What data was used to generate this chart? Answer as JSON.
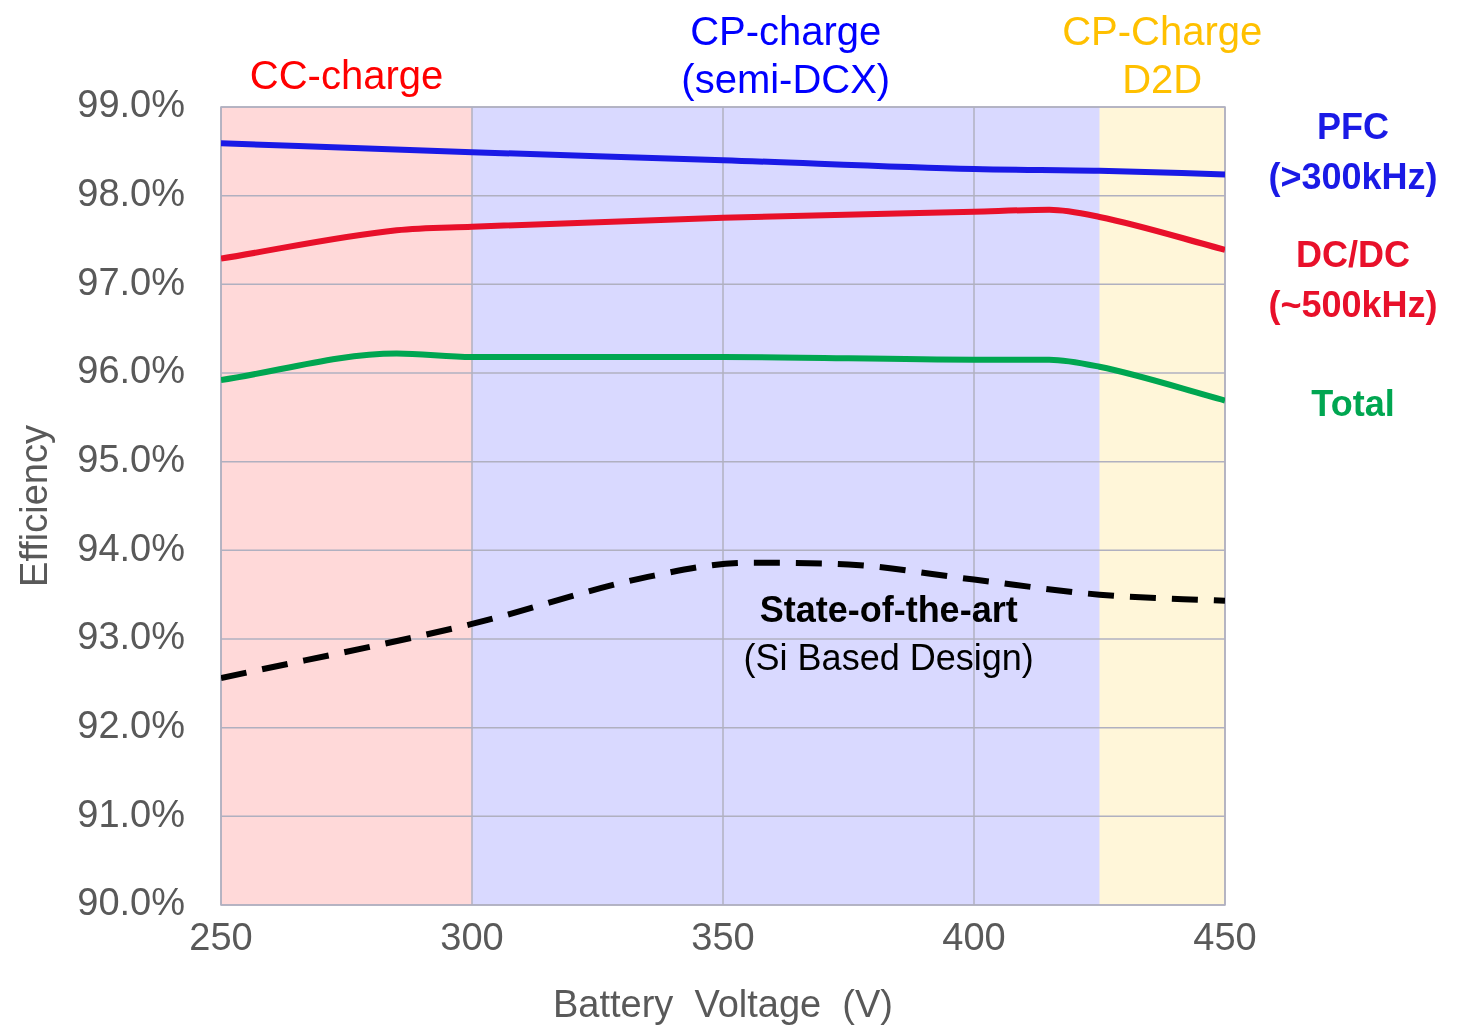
{
  "chart_data": {
    "type": "line",
    "xlabel": "Battery  Voltage  (V)",
    "ylabel": "Efficiency",
    "xlim": [
      250,
      450
    ],
    "xticks": [
      250,
      300,
      350,
      400,
      450
    ],
    "ylim": [
      90,
      99
    ],
    "yticks": [
      {
        "value": 90,
        "label": "90.0%"
      },
      {
        "value": 91,
        "label": "91.0%"
      },
      {
        "value": 92,
        "label": "92.0%"
      },
      {
        "value": 93,
        "label": "93.0%"
      },
      {
        "value": 94,
        "label": "94.0%"
      },
      {
        "value": 95,
        "label": "95.0%"
      },
      {
        "value": 96,
        "label": "96.0%"
      },
      {
        "value": 97,
        "label": "97.0%"
      },
      {
        "value": 98,
        "label": "98.0%"
      },
      {
        "value": 99,
        "label": "99.0%"
      }
    ],
    "grid": true,
    "legend": false,
    "marker": "none",
    "bands": [
      {
        "axis": "x",
        "from": 250,
        "to": 300,
        "label": "CC-charge",
        "color": "#ff0000"
      },
      {
        "axis": "x",
        "from": 300,
        "to": 425,
        "label": "CP-charge (semi-DCX)",
        "color": "#0000ff"
      },
      {
        "axis": "x",
        "from": 425,
        "to": 450,
        "label": "CP-Charge D2D",
        "color": "#ffc000"
      }
    ],
    "series": [
      {
        "name": "PFC (>300kHz)",
        "color": "#1a1ae6",
        "x": [
          250,
          300,
          350,
          400,
          425,
          450
        ],
        "values": [
          98.59,
          98.49,
          98.4,
          98.3,
          98.28,
          98.24
        ]
      },
      {
        "name": "DC/DC (~500kHz)",
        "color": "#e8102a",
        "x": [
          250,
          285,
          300,
          350,
          400,
          415,
          425,
          450
        ],
        "values": [
          97.29,
          97.61,
          97.65,
          97.75,
          97.82,
          97.84,
          97.76,
          97.39
        ]
      },
      {
        "name": "Total",
        "color": "#00a651",
        "x": [
          250,
          285,
          300,
          350,
          400,
          415,
          425,
          450
        ],
        "values": [
          95.92,
          96.22,
          96.18,
          96.18,
          96.15,
          96.15,
          96.07,
          95.69
        ]
      },
      {
        "name": "State-of-the-art",
        "color": "#000000",
        "line_style": "dashed",
        "x": [
          250,
          300,
          335,
          355,
          375,
          400,
          425,
          450
        ],
        "values": [
          92.56,
          93.17,
          93.7,
          93.86,
          93.84,
          93.67,
          93.5,
          93.43
        ]
      }
    ],
    "annotations": [
      "(Si Based Design)"
    ]
  }
}
